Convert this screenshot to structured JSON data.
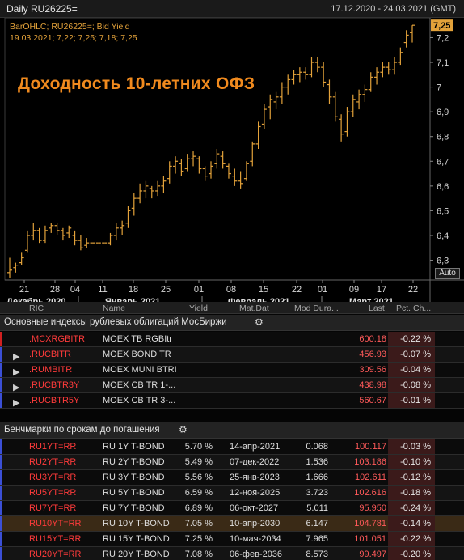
{
  "chart": {
    "header_title": "Daily RU26225=",
    "date_range": "17.12.2020 - 24.03.2021 (GMT)",
    "legend_line1": "BarOHLC; RU26225=; Bid Yield",
    "legend_line2": "19.03.2021; 7,22; 7,25; 7,18; 7,25",
    "overlay_title": "Доходность 10-летних ОФЗ",
    "last_value_label": "7,25",
    "auto_button": "Auto",
    "bar_color": "#e3a23a",
    "y_ticks": [
      "7,2",
      "7,1",
      "7",
      "6,9",
      "6,8",
      "6,7",
      "6,6",
      "6,5",
      "6,4",
      "6,3"
    ],
    "x_ticks": [
      "21",
      "28",
      "04",
      "11",
      "18",
      "25",
      "01",
      "08",
      "15",
      "22",
      "01",
      "09",
      "17",
      "22"
    ],
    "month_labels": [
      "Декабрь 2020",
      "Январь 2021",
      "Февраль 2021",
      "Март 2021"
    ]
  },
  "chart_data": {
    "type": "ohlc",
    "title": "",
    "ylim": [
      6.22,
      7.28
    ],
    "series": [
      {
        "name": "RU26225=",
        "bars": [
          [
            6.25,
            6.31,
            6.23,
            6.26
          ],
          [
            6.27,
            6.29,
            6.25,
            6.28
          ],
          [
            6.29,
            6.33,
            6.28,
            6.31
          ],
          [
            6.34,
            6.42,
            6.33,
            6.4
          ],
          [
            6.4,
            6.45,
            6.38,
            6.42
          ],
          [
            6.42,
            6.43,
            6.37,
            6.38
          ],
          [
            6.38,
            6.44,
            6.37,
            6.42
          ],
          [
            6.43,
            6.45,
            6.41,
            6.44
          ],
          [
            6.44,
            6.45,
            6.4,
            6.42
          ],
          [
            6.42,
            6.43,
            6.38,
            6.4
          ],
          [
            6.41,
            6.44,
            6.39,
            6.43
          ],
          [
            6.4,
            6.42,
            6.36,
            6.38
          ],
          [
            6.38,
            6.4,
            6.34,
            6.35
          ],
          [
            6.36,
            6.39,
            6.35,
            6.37
          ],
          [
            6.37,
            6.37,
            6.37,
            6.37
          ],
          [
            6.37,
            6.37,
            6.37,
            6.37
          ],
          [
            6.37,
            6.37,
            6.37,
            6.37
          ],
          [
            6.37,
            6.41,
            6.36,
            6.4
          ],
          [
            6.4,
            6.45,
            6.38,
            6.43
          ],
          [
            6.43,
            6.46,
            6.4,
            6.44
          ],
          [
            6.45,
            6.52,
            6.43,
            6.5
          ],
          [
            6.51,
            6.57,
            6.48,
            6.55
          ],
          [
            6.55,
            6.61,
            6.53,
            6.58
          ],
          [
            6.58,
            6.62,
            6.55,
            6.6
          ],
          [
            6.59,
            6.6,
            6.55,
            6.58
          ],
          [
            6.58,
            6.62,
            6.56,
            6.6
          ],
          [
            6.6,
            6.64,
            6.57,
            6.62
          ],
          [
            6.63,
            6.7,
            6.61,
            6.68
          ],
          [
            6.68,
            6.72,
            6.65,
            6.7
          ],
          [
            6.69,
            6.71,
            6.64,
            6.66
          ],
          [
            6.67,
            6.73,
            6.66,
            6.71
          ],
          [
            6.71,
            6.74,
            6.68,
            6.72
          ],
          [
            6.71,
            6.72,
            6.65,
            6.67
          ],
          [
            6.67,
            6.68,
            6.62,
            6.64
          ],
          [
            6.65,
            6.7,
            6.63,
            6.68
          ],
          [
            6.69,
            6.75,
            6.67,
            6.73
          ],
          [
            6.72,
            6.74,
            6.67,
            6.69
          ],
          [
            6.68,
            6.69,
            6.63,
            6.65
          ],
          [
            6.64,
            6.67,
            6.6,
            6.62
          ],
          [
            6.62,
            6.66,
            6.59,
            6.61
          ],
          [
            6.63,
            6.7,
            6.62,
            6.69
          ],
          [
            6.7,
            6.78,
            6.68,
            6.77
          ],
          [
            6.77,
            6.86,
            6.75,
            6.84
          ],
          [
            6.85,
            6.93,
            6.83,
            6.91
          ],
          [
            6.92,
            6.97,
            6.87,
            6.95
          ],
          [
            6.94,
            6.98,
            6.91,
            6.96
          ],
          [
            6.96,
            7.02,
            6.93,
            7.0
          ],
          [
            7.0,
            7.05,
            6.97,
            7.03
          ],
          [
            7.03,
            7.07,
            7.01,
            7.05
          ],
          [
            7.05,
            7.08,
            7.02,
            7.06
          ],
          [
            7.06,
            7.08,
            7.03,
            7.05
          ],
          [
            7.05,
            7.12,
            7.04,
            7.1
          ],
          [
            7.1,
            7.12,
            7.06,
            7.08
          ],
          [
            7.08,
            7.1,
            7.0,
            7.02
          ],
          [
            7.01,
            7.03,
            6.93,
            6.96
          ],
          [
            6.96,
            6.98,
            6.86,
            6.88
          ],
          [
            6.87,
            6.89,
            6.78,
            6.81
          ],
          [
            6.82,
            6.92,
            6.8,
            6.9
          ],
          [
            6.9,
            6.97,
            6.88,
            6.95
          ],
          [
            6.94,
            6.99,
            6.91,
            6.97
          ],
          [
            6.97,
            7.01,
            6.94,
            6.99
          ],
          [
            6.99,
            7.06,
            6.98,
            7.04
          ],
          [
            7.04,
            7.08,
            7.01,
            7.06
          ],
          [
            7.06,
            7.1,
            7.04,
            7.08
          ],
          [
            7.08,
            7.1,
            7.05,
            7.07
          ],
          [
            7.07,
            7.12,
            7.05,
            7.1
          ],
          [
            7.1,
            7.16,
            7.09,
            7.14
          ],
          [
            7.18,
            7.23,
            7.16,
            7.21
          ],
          [
            7.22,
            7.25,
            7.18,
            7.25
          ]
        ]
      }
    ]
  },
  "table": {
    "columns": [
      "RIC",
      "Name",
      "Yield",
      "Mat.Dat",
      "Mod Dura...",
      "Last",
      "Pct. Ch..."
    ],
    "section1_title": "Основные индексы рублевых облигаций МосБиржи",
    "section1_rows": [
      {
        "ric": ".MCXRGBITR",
        "name": "MOEX TB RGBItr",
        "last": "600.18",
        "pct": "-0.22 %",
        "expand": false
      },
      {
        "ric": ".RUCBITR",
        "name": "MOEX BOND TR",
        "last": "456.93",
        "pct": "-0.07 %",
        "expand": true
      },
      {
        "ric": ".RUMBITR",
        "name": "MOEX MUNI BTRI",
        "last": "309.56",
        "pct": "-0.04 %",
        "expand": true
      },
      {
        "ric": ".RUCBTR3Y",
        "name": "MOEX CB TR 1-...",
        "last": "438.98",
        "pct": "-0.08 %",
        "expand": true
      },
      {
        "ric": ".RUCBTR5Y",
        "name": "MOEX CB TR 3-...",
        "last": "560.67",
        "pct": "-0.01 %",
        "expand": true
      }
    ],
    "section2_title": "Бенчмарки по срокам до погашения",
    "section2_rows": [
      {
        "ric": "RU1YT=RR",
        "name": "RU 1Y T-BOND",
        "yield": "5.70 %",
        "mat": "14-апр-2021",
        "dur": "0.068",
        "last": "100.117",
        "pct": "-0.03 %"
      },
      {
        "ric": "RU2YT=RR",
        "name": "RU 2Y T-BOND",
        "yield": "5.49 %",
        "mat": "07-дек-2022",
        "dur": "1.536",
        "last": "103.186",
        "pct": "-0.10 %"
      },
      {
        "ric": "RU3YT=RR",
        "name": "RU 3Y T-BOND",
        "yield": "5.56 %",
        "mat": "25-янв-2023",
        "dur": "1.666",
        "last": "102.611",
        "pct": "-0.12 %"
      },
      {
        "ric": "RU5YT=RR",
        "name": "RU 5Y T-BOND",
        "yield": "6.59 %",
        "mat": "12-ноя-2025",
        "dur": "3.723",
        "last": "102.616",
        "pct": "-0.18 %"
      },
      {
        "ric": "RU7YT=RR",
        "name": "RU 7Y T-BOND",
        "yield": "6.89 %",
        "mat": "06-окт-2027",
        "dur": "5.011",
        "last": "95.950",
        "pct": "-0.24 %"
      },
      {
        "ric": "RU10YT=RR",
        "name": "RU 10Y T-BOND",
        "yield": "7.05 %",
        "mat": "10-апр-2030",
        "dur": "6.147",
        "last": "104.781",
        "pct": "-0.14 %"
      },
      {
        "ric": "RU15YT=RR",
        "name": "RU 15Y T-BOND",
        "yield": "7.25 %",
        "mat": "10-мая-2034",
        "dur": "7.965",
        "last": "101.051",
        "pct": "-0.22 %"
      },
      {
        "ric": "RU20YT=RR",
        "name": "RU 20Y T-BOND",
        "yield": "7.08 %",
        "mat": "06-фев-2036",
        "dur": "8.573",
        "last": "99.497",
        "pct": "-0.20 %"
      }
    ]
  }
}
